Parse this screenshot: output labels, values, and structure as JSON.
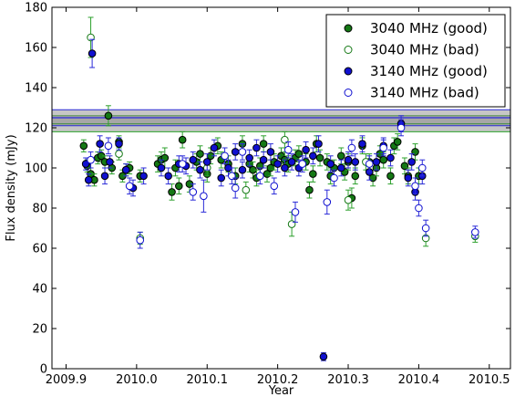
{
  "chart_data": {
    "type": "scatter",
    "title": "",
    "xlabel": "Year",
    "ylabel": "Flux density (mJy)",
    "xlim": [
      2009.88,
      2010.53
    ],
    "ylim": [
      0,
      180
    ],
    "xticks": [
      2009.9,
      2010.0,
      2010.1,
      2010.2,
      2010.3,
      2010.4,
      2010.5
    ],
    "xtick_labels": [
      "2009.9",
      "2010.0",
      "2010.1",
      "2010.2",
      "2010.3",
      "2010.4",
      "2010.5"
    ],
    "yticks": [
      0,
      20,
      40,
      60,
      80,
      100,
      120,
      140,
      160,
      180
    ],
    "ytick_labels": [
      "0",
      "20",
      "40",
      "60",
      "80",
      "100",
      "120",
      "140",
      "160",
      "180"
    ],
    "grid": false,
    "legend_position": "top-right",
    "bands": [
      {
        "center": 122,
        "low": 118,
        "high": 126,
        "color": "#2ca02c"
      },
      {
        "center": 125,
        "low": 121,
        "high": 129,
        "color": "#2a2ad8"
      }
    ],
    "series": [
      {
        "name": "3040 MHz (good)",
        "color": "#147814",
        "filled": true,
        "points": [
          [
            2009.925,
            111,
            3
          ],
          [
            2009.93,
            101,
            3
          ],
          [
            2009.935,
            97,
            3
          ],
          [
            2009.94,
            94,
            3
          ],
          [
            2009.945,
            105,
            3
          ],
          [
            2009.95,
            106,
            3
          ],
          [
            2009.955,
            103,
            3
          ],
          [
            2009.96,
            126,
            5
          ],
          [
            2009.965,
            100,
            3
          ],
          [
            2009.975,
            113,
            3
          ],
          [
            2009.98,
            96,
            3
          ],
          [
            2009.985,
            99,
            3
          ],
          [
            2009.99,
            100,
            3
          ],
          [
            2010.005,
            96,
            3
          ],
          [
            2010.03,
            102,
            4
          ],
          [
            2010.035,
            104,
            4
          ],
          [
            2010.04,
            105,
            5
          ],
          [
            2010.05,
            88,
            4
          ],
          [
            2010.055,
            100,
            4
          ],
          [
            2010.06,
            91,
            4
          ],
          [
            2010.065,
            114,
            4
          ],
          [
            2010.075,
            92,
            4
          ],
          [
            2010.085,
            103,
            4
          ],
          [
            2010.09,
            107,
            4
          ],
          [
            2010.1,
            97,
            4
          ],
          [
            2010.105,
            106,
            4
          ],
          [
            2010.115,
            111,
            4
          ],
          [
            2010.12,
            104,
            4
          ],
          [
            2010.13,
            102,
            4
          ],
          [
            2010.14,
            96,
            4
          ],
          [
            2010.15,
            112,
            4
          ],
          [
            2010.16,
            102,
            4
          ],
          [
            2010.165,
            99,
            4
          ],
          [
            2010.17,
            95,
            4
          ],
          [
            2010.175,
            101,
            4
          ],
          [
            2010.18,
            112,
            4
          ],
          [
            2010.185,
            97,
            4
          ],
          [
            2010.19,
            100,
            4
          ],
          [
            2010.195,
            103,
            4
          ],
          [
            2010.205,
            106,
            4
          ],
          [
            2010.21,
            104,
            4
          ],
          [
            2010.215,
            102,
            4
          ],
          [
            2010.225,
            105,
            4
          ],
          [
            2010.23,
            107,
            4
          ],
          [
            2010.24,
            103,
            4
          ],
          [
            2010.245,
            89,
            4
          ],
          [
            2010.25,
            97,
            4
          ],
          [
            2010.255,
            112,
            4
          ],
          [
            2010.26,
            105,
            4
          ],
          [
            2010.27,
            103,
            4
          ],
          [
            2010.275,
            96,
            4
          ],
          [
            2010.28,
            100,
            4
          ],
          [
            2010.29,
            106,
            4
          ],
          [
            2010.295,
            98,
            4
          ],
          [
            2010.3,
            103,
            4
          ],
          [
            2010.305,
            85,
            5
          ],
          [
            2010.31,
            96,
            4
          ],
          [
            2010.32,
            111,
            4
          ],
          [
            2010.33,
            103,
            4
          ],
          [
            2010.335,
            95,
            4
          ],
          [
            2010.34,
            100,
            4
          ],
          [
            2010.345,
            107,
            4
          ],
          [
            2010.35,
            104,
            4
          ],
          [
            2010.36,
            96,
            4
          ],
          [
            2010.365,
            111,
            4
          ],
          [
            2010.37,
            113,
            4
          ],
          [
            2010.38,
            101,
            4
          ],
          [
            2010.385,
            96,
            4
          ],
          [
            2010.395,
            108,
            4
          ],
          [
            2010.4,
            96,
            4
          ]
        ]
      },
      {
        "name": "3040 MHz (bad)",
        "color": "#147814",
        "filled": false,
        "points": [
          [
            2009.935,
            165,
            10
          ],
          [
            2009.975,
            107,
            3
          ],
          [
            2010.005,
            65,
            3
          ],
          [
            2010.1,
            100,
            4
          ],
          [
            2010.155,
            89,
            4
          ],
          [
            2010.21,
            114,
            4
          ],
          [
            2010.22,
            72,
            6
          ],
          [
            2010.3,
            84,
            5
          ],
          [
            2010.325,
            103,
            4
          ],
          [
            2010.41,
            65,
            4
          ],
          [
            2010.48,
            66,
            3
          ]
        ]
      },
      {
        "name": "3140 MHz (good)",
        "color": "#1010d0",
        "filled": true,
        "points": [
          [
            2009.928,
            102,
            3
          ],
          [
            2009.932,
            94,
            3
          ],
          [
            2009.937,
            157,
            7
          ],
          [
            2009.948,
            112,
            4
          ],
          [
            2009.955,
            96,
            4
          ],
          [
            2009.962,
            103,
            3
          ],
          [
            2009.975,
            112,
            3
          ],
          [
            2009.985,
            99,
            3
          ],
          [
            2009.995,
            90,
            4
          ],
          [
            2010.01,
            96,
            4
          ],
          [
            2010.035,
            100,
            4
          ],
          [
            2010.045,
            96,
            4
          ],
          [
            2010.06,
            102,
            4
          ],
          [
            2010.07,
            101,
            4
          ],
          [
            2010.08,
            104,
            4
          ],
          [
            2010.09,
            99,
            4
          ],
          [
            2010.1,
            103,
            4
          ],
          [
            2010.11,
            110,
            4
          ],
          [
            2010.12,
            95,
            4
          ],
          [
            2010.13,
            100,
            4
          ],
          [
            2010.14,
            108,
            4
          ],
          [
            2010.15,
            99,
            4
          ],
          [
            2010.16,
            105,
            4
          ],
          [
            2010.17,
            110,
            4
          ],
          [
            2010.18,
            104,
            4
          ],
          [
            2010.19,
            108,
            4
          ],
          [
            2010.2,
            102,
            4
          ],
          [
            2010.21,
            100,
            4
          ],
          [
            2010.22,
            103,
            4
          ],
          [
            2010.23,
            100,
            4
          ],
          [
            2010.24,
            109,
            4
          ],
          [
            2010.25,
            106,
            4
          ],
          [
            2010.258,
            112,
            4
          ],
          [
            2010.265,
            6,
            2
          ],
          [
            2010.275,
            102,
            4
          ],
          [
            2010.29,
            100,
            4
          ],
          [
            2010.3,
            104,
            4
          ],
          [
            2010.31,
            103,
            4
          ],
          [
            2010.32,
            112,
            4
          ],
          [
            2010.33,
            98,
            4
          ],
          [
            2010.34,
            103,
            4
          ],
          [
            2010.35,
            111,
            4
          ],
          [
            2010.36,
            105,
            4
          ],
          [
            2010.375,
            122,
            4
          ],
          [
            2010.385,
            95,
            4
          ],
          [
            2010.39,
            103,
            4
          ],
          [
            2010.395,
            88,
            4
          ],
          [
            2010.405,
            96,
            4
          ]
        ]
      },
      {
        "name": "3140 MHz (bad)",
        "color": "#1010d0",
        "filled": false,
        "points": [
          [
            2009.935,
            104,
            4
          ],
          [
            2009.96,
            111,
            4
          ],
          [
            2009.99,
            91,
            4
          ],
          [
            2010.005,
            64,
            4
          ],
          [
            2010.065,
            102,
            4
          ],
          [
            2010.08,
            88,
            4
          ],
          [
            2010.095,
            86,
            8
          ],
          [
            2010.125,
            106,
            4
          ],
          [
            2010.135,
            96,
            4
          ],
          [
            2010.14,
            90,
            5
          ],
          [
            2010.15,
            108,
            4
          ],
          [
            2010.175,
            96,
            4
          ],
          [
            2010.195,
            91,
            4
          ],
          [
            2010.215,
            109,
            4
          ],
          [
            2010.225,
            78,
            5
          ],
          [
            2010.235,
            102,
            4
          ],
          [
            2010.27,
            83,
            6
          ],
          [
            2010.28,
            95,
            4
          ],
          [
            2010.305,
            110,
            4
          ],
          [
            2010.33,
            102,
            4
          ],
          [
            2010.35,
            110,
            4
          ],
          [
            2010.375,
            120,
            4
          ],
          [
            2010.395,
            91,
            4
          ],
          [
            2010.4,
            80,
            4
          ],
          [
            2010.405,
            100,
            4
          ],
          [
            2010.41,
            70,
            4
          ],
          [
            2010.48,
            68,
            3
          ]
        ]
      }
    ]
  }
}
